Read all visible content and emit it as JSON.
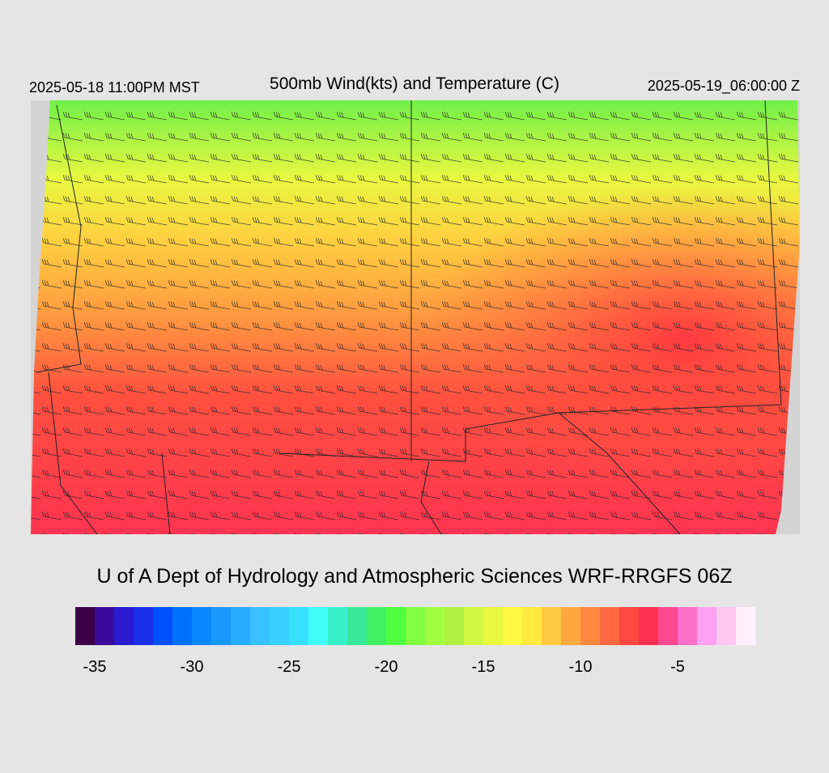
{
  "header": {
    "local_time": "2025-05-18 11:00PM MST",
    "title": "500mb Wind(kts) and Temperature (C)",
    "valid_time": "2025-05-19_06:00:00 Z"
  },
  "credit": "U of A Dept of Hydrology and Atmospheric Sciences WRF-RRGFS 06Z",
  "colorbar": {
    "range": [
      -36,
      -1
    ],
    "ticks": [
      -35,
      -30,
      -25,
      -20,
      -15,
      -10,
      -5
    ],
    "colors": [
      "#3b0045",
      "#3a0a9a",
      "#2a1ad0",
      "#1a2ee8",
      "#0050ff",
      "#0070ff",
      "#0a88ff",
      "#1898ff",
      "#28acff",
      "#38c0ff",
      "#38d0ff",
      "#38e0ff",
      "#40fff8",
      "#38f0c8",
      "#38e898",
      "#40f060",
      "#50ff40",
      "#80ff40",
      "#a0ff40",
      "#b0f040",
      "#d0f840",
      "#e8f840",
      "#fff840",
      "#ffe840",
      "#ffc840",
      "#ffa840",
      "#ff8840",
      "#ff6840",
      "#ff4840",
      "#ff3050",
      "#ff4890",
      "#ff70c8",
      "#ffa0f0",
      "#ffc8f0",
      "#fff0fc"
    ]
  }
}
